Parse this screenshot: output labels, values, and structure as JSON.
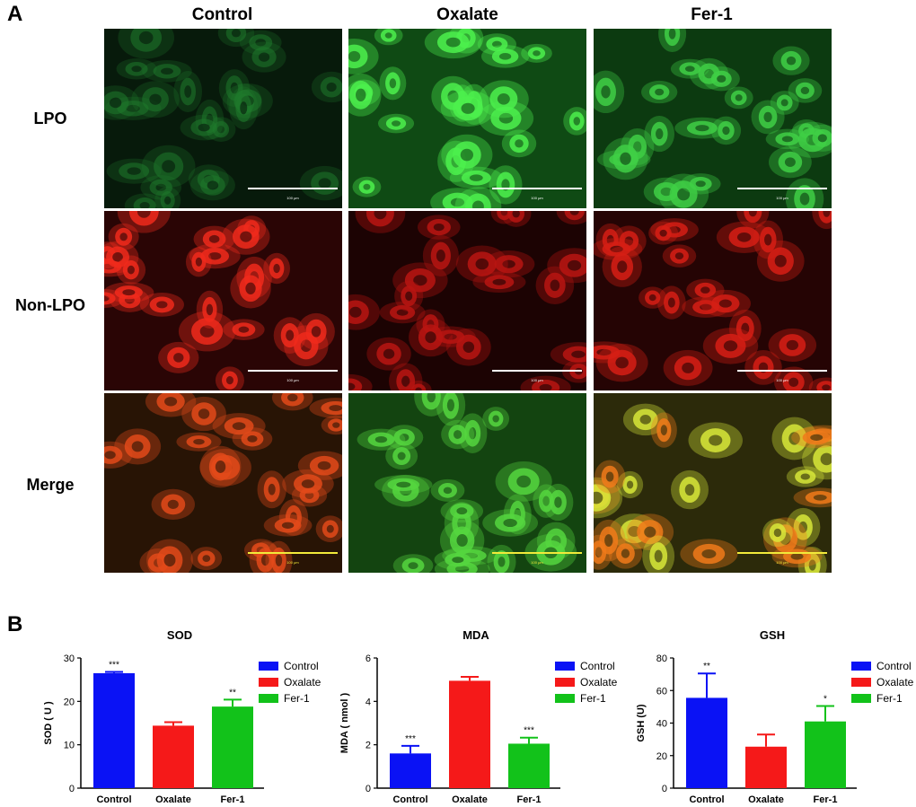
{
  "panel_labels": {
    "a": "A",
    "b": "B"
  },
  "columns": [
    "Control",
    "Oxalate",
    "Fer-1"
  ],
  "rows": [
    "LPO",
    "Non-LPO",
    "Merge"
  ],
  "scale_bar_label": "100 μm",
  "colors": {
    "control": "#0a12f5",
    "oxalate": "#f51919",
    "fer1": "#12c21a",
    "lpo_cell": "#4cf04c",
    "nonlpo_cell": "#f02a1c",
    "merge_yellow": "#d8e83a",
    "bar_white": "#ffffff",
    "bar_yellow": "#f2ea3a"
  },
  "chart_data": [
    {
      "type": "bar",
      "title": "SOD",
      "ylabel": "SOD ( U )",
      "xlabel": "",
      "categories": [
        "Control",
        "Oxalate",
        "Fer-1"
      ],
      "values": [
        26.5,
        14.4,
        18.8
      ],
      "errors": [
        0.3,
        0.8,
        1.6
      ],
      "significance": [
        "***",
        "",
        "**"
      ],
      "ylim": [
        0,
        30
      ],
      "yticks": [
        "0",
        "10",
        "20",
        "30"
      ],
      "legend": [
        "Control",
        "Oxalate",
        "Fer-1"
      ]
    },
    {
      "type": "bar",
      "title": "MDA",
      "ylabel": "MDA ( nmol )",
      "xlabel": "",
      "categories": [
        "Control",
        "Oxalate",
        "Fer-1"
      ],
      "values": [
        1.6,
        4.95,
        2.05
      ],
      "errors": [
        0.35,
        0.18,
        0.28
      ],
      "significance": [
        "***",
        "",
        "***"
      ],
      "ylim": [
        0,
        6
      ],
      "yticks": [
        "0",
        "2",
        "4",
        "6"
      ],
      "legend": [
        "Control",
        "Oxalate",
        "Fer-1"
      ]
    },
    {
      "type": "bar",
      "title": "GSH",
      "ylabel": "GSH (U)",
      "xlabel": "",
      "categories": [
        "Control",
        "Oxalate",
        "Fer-1"
      ],
      "values": [
        55.5,
        25.5,
        41
      ],
      "errors": [
        15,
        7.5,
        9.5
      ],
      "significance": [
        "**",
        "",
        "*"
      ],
      "ylim": [
        0,
        80
      ],
      "yticks": [
        "0",
        "20",
        "40",
        "60",
        "80"
      ],
      "legend": [
        "Control",
        "Oxalate",
        "Fer-1"
      ]
    }
  ]
}
